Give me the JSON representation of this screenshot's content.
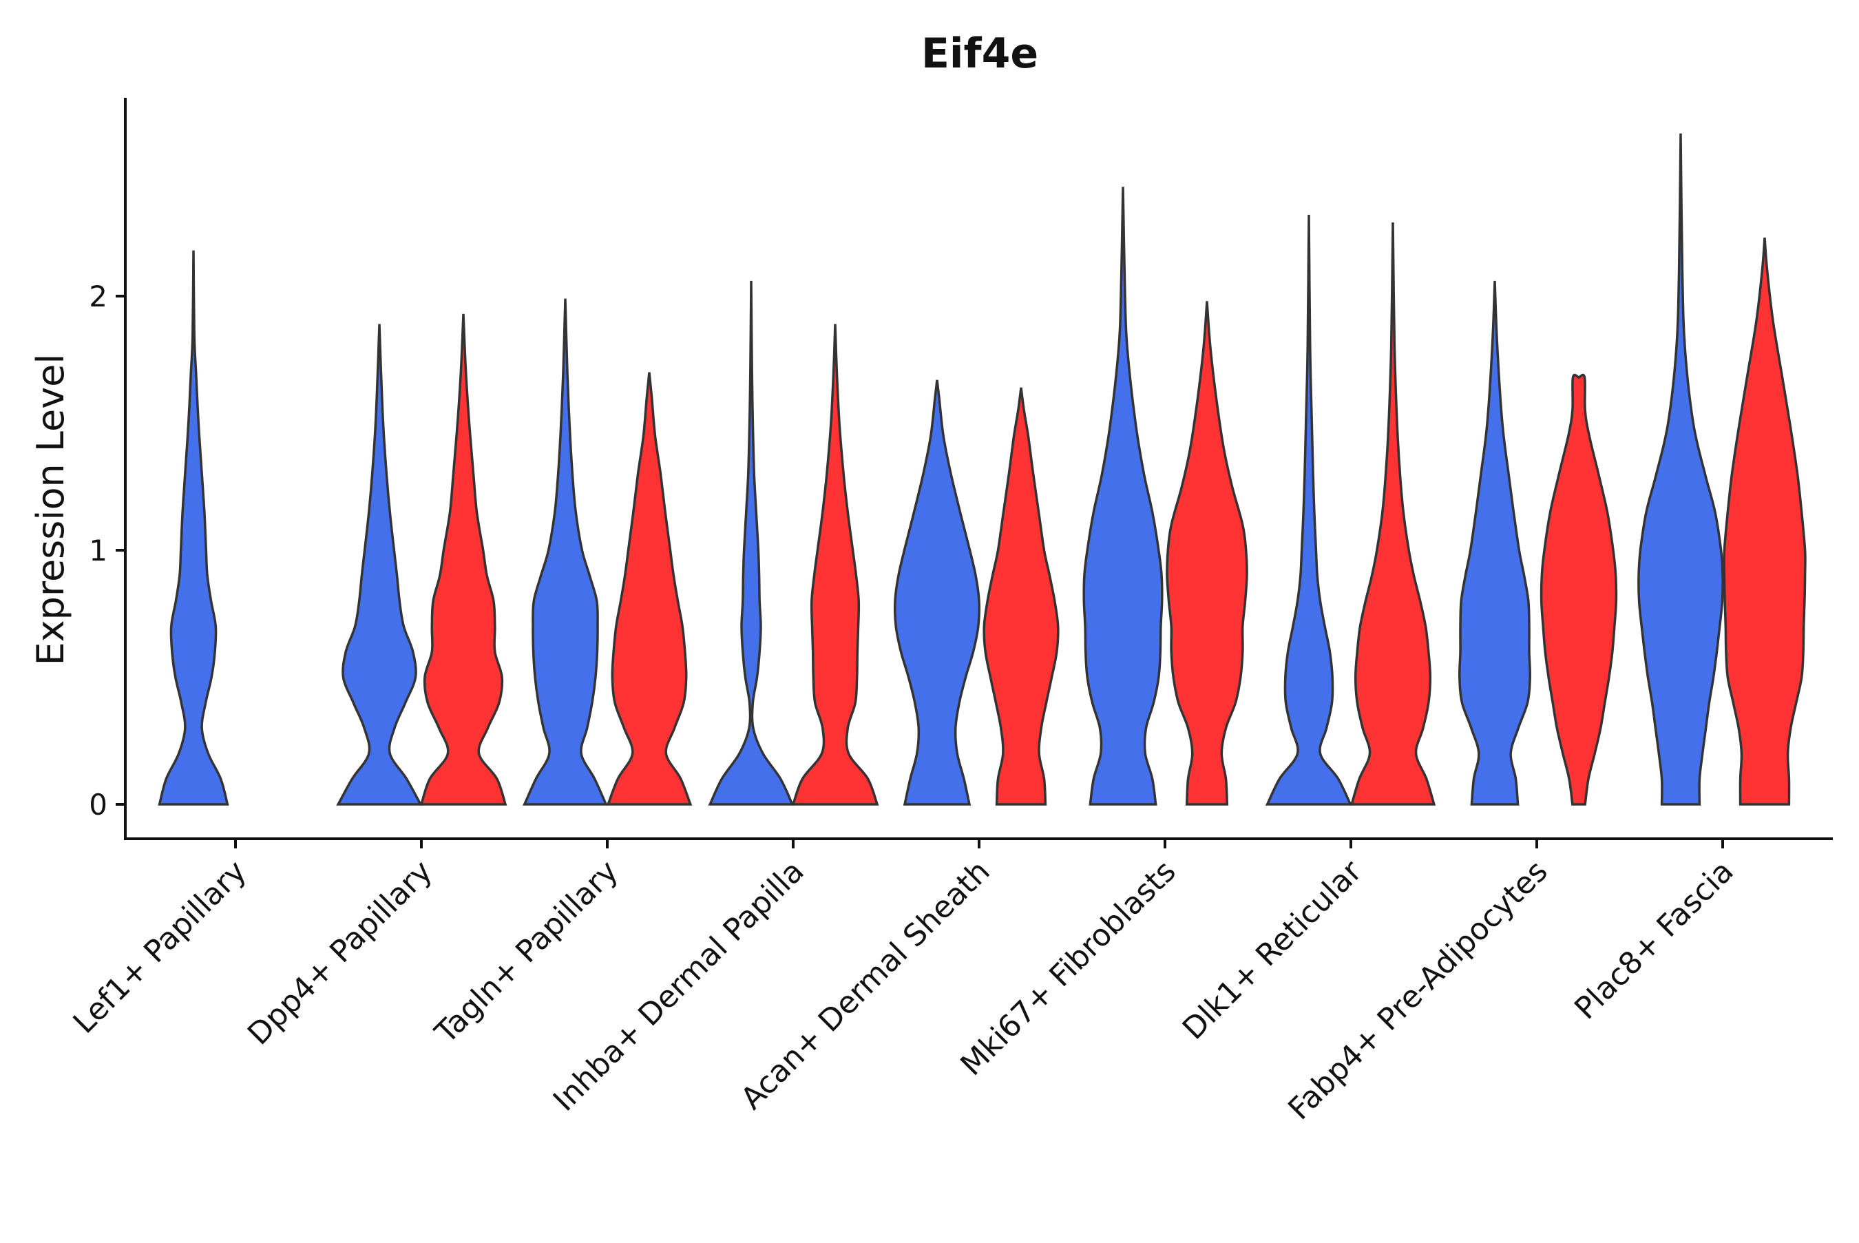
{
  "chart_data": {
    "type": "violin",
    "title": "Eif4e",
    "xlabel": "",
    "ylabel": "Expression Level",
    "ylim": [
      -0.13,
      2.8
    ],
    "yticks": [
      "0",
      "1",
      "2"
    ],
    "grid": false,
    "legend": "none",
    "series_colors": {
      "blue": "#4570EB",
      "red": "#FF3333"
    },
    "categories": [
      "Lef1+ Papillary",
      "Dpp4+ Papillary",
      "Tagln+ Papillary",
      "Inhba+ Dermal Papilla",
      "Acan+ Dermal Sheath",
      "Mki67+ Fibroblasts",
      "Dlk1+ Reticular",
      "Fabp4+ Pre-Adipocytes",
      "Plac8+ Fascia"
    ],
    "violins": [
      {
        "category": "Lef1+ Papillary",
        "group": "blue",
        "max": 2.18,
        "profile": [
          [
            0,
            0.81
          ],
          [
            0.1,
            0.65
          ],
          [
            0.2,
            0.35
          ],
          [
            0.3,
            0.2
          ],
          [
            0.4,
            0.29
          ],
          [
            0.5,
            0.43
          ],
          [
            0.6,
            0.51
          ],
          [
            0.7,
            0.53
          ],
          [
            0.8,
            0.42
          ],
          [
            0.9,
            0.33
          ],
          [
            1.0,
            0.3
          ],
          [
            1.15,
            0.26
          ],
          [
            1.3,
            0.2
          ],
          [
            1.5,
            0.12
          ],
          [
            1.7,
            0.06
          ],
          [
            1.85,
            0.02
          ],
          [
            2.18,
            0.0
          ]
        ]
      },
      {
        "category": "Dpp4+ Papillary",
        "group": "blue",
        "max": 1.89,
        "profile": [
          [
            0,
            0.98
          ],
          [
            0.1,
            0.65
          ],
          [
            0.2,
            0.25
          ],
          [
            0.3,
            0.36
          ],
          [
            0.4,
            0.62
          ],
          [
            0.5,
            0.86
          ],
          [
            0.6,
            0.8
          ],
          [
            0.7,
            0.58
          ],
          [
            0.8,
            0.48
          ],
          [
            0.9,
            0.42
          ],
          [
            1.0,
            0.35
          ],
          [
            1.15,
            0.25
          ],
          [
            1.3,
            0.17
          ],
          [
            1.5,
            0.09
          ],
          [
            1.7,
            0.04
          ],
          [
            1.89,
            0.0
          ]
        ]
      },
      {
        "category": "Dpp4+ Papillary",
        "group": "red",
        "max": 1.93,
        "profile": [
          [
            0,
            1.0
          ],
          [
            0.1,
            0.8
          ],
          [
            0.2,
            0.37
          ],
          [
            0.3,
            0.58
          ],
          [
            0.4,
            0.85
          ],
          [
            0.5,
            0.92
          ],
          [
            0.6,
            0.75
          ],
          [
            0.7,
            0.75
          ],
          [
            0.8,
            0.72
          ],
          [
            0.9,
            0.56
          ],
          [
            1.0,
            0.47
          ],
          [
            1.15,
            0.32
          ],
          [
            1.3,
            0.24
          ],
          [
            1.5,
            0.14
          ],
          [
            1.7,
            0.06
          ],
          [
            1.93,
            0.0
          ]
        ]
      },
      {
        "category": "Tagln+ Papillary",
        "group": "blue",
        "max": 1.99,
        "profile": [
          [
            0,
            0.97
          ],
          [
            0.1,
            0.7
          ],
          [
            0.2,
            0.38
          ],
          [
            0.3,
            0.52
          ],
          [
            0.4,
            0.64
          ],
          [
            0.5,
            0.72
          ],
          [
            0.6,
            0.76
          ],
          [
            0.7,
            0.77
          ],
          [
            0.8,
            0.75
          ],
          [
            0.9,
            0.58
          ],
          [
            1.0,
            0.4
          ],
          [
            1.15,
            0.25
          ],
          [
            1.3,
            0.17
          ],
          [
            1.5,
            0.1
          ],
          [
            1.7,
            0.05
          ],
          [
            1.99,
            0.0
          ]
        ]
      },
      {
        "category": "Tagln+ Papillary",
        "group": "red",
        "max": 1.7,
        "profile": [
          [
            0,
            0.98
          ],
          [
            0.1,
            0.75
          ],
          [
            0.2,
            0.4
          ],
          [
            0.3,
            0.6
          ],
          [
            0.4,
            0.82
          ],
          [
            0.5,
            0.88
          ],
          [
            0.6,
            0.85
          ],
          [
            0.7,
            0.79
          ],
          [
            0.8,
            0.68
          ],
          [
            0.9,
            0.58
          ],
          [
            1.0,
            0.5
          ],
          [
            1.15,
            0.38
          ],
          [
            1.3,
            0.27
          ],
          [
            1.45,
            0.14
          ],
          [
            1.6,
            0.06
          ],
          [
            1.7,
            0.0
          ]
        ]
      },
      {
        "category": "Inhba+ Dermal Papilla",
        "group": "blue",
        "max": 2.06,
        "profile": [
          [
            0,
            0.98
          ],
          [
            0.1,
            0.7
          ],
          [
            0.2,
            0.28
          ],
          [
            0.3,
            0.05
          ],
          [
            0.4,
            0.04
          ],
          [
            0.5,
            0.14
          ],
          [
            0.6,
            0.2
          ],
          [
            0.7,
            0.23
          ],
          [
            0.8,
            0.2
          ],
          [
            0.9,
            0.19
          ],
          [
            1.0,
            0.17
          ],
          [
            1.15,
            0.12
          ],
          [
            1.3,
            0.07
          ],
          [
            1.5,
            0.04
          ],
          [
            1.7,
            0.02
          ],
          [
            2.06,
            0.0
          ]
        ]
      },
      {
        "category": "Inhba+ Dermal Papilla",
        "group": "red",
        "max": 1.89,
        "profile": [
          [
            0,
            1.0
          ],
          [
            0.1,
            0.78
          ],
          [
            0.2,
            0.32
          ],
          [
            0.3,
            0.3
          ],
          [
            0.4,
            0.48
          ],
          [
            0.5,
            0.52
          ],
          [
            0.6,
            0.53
          ],
          [
            0.7,
            0.55
          ],
          [
            0.8,
            0.56
          ],
          [
            0.9,
            0.5
          ],
          [
            1.0,
            0.42
          ],
          [
            1.15,
            0.3
          ],
          [
            1.3,
            0.2
          ],
          [
            1.5,
            0.1
          ],
          [
            1.7,
            0.04
          ],
          [
            1.89,
            0.0
          ]
        ]
      },
      {
        "category": "Acan+ Dermal Sheath",
        "group": "blue",
        "max": 1.67,
        "profile": [
          [
            0,
            0.77
          ],
          [
            0.1,
            0.64
          ],
          [
            0.2,
            0.48
          ],
          [
            0.3,
            0.44
          ],
          [
            0.4,
            0.53
          ],
          [
            0.5,
            0.68
          ],
          [
            0.6,
            0.86
          ],
          [
            0.7,
            0.98
          ],
          [
            0.8,
            1.0
          ],
          [
            0.9,
            0.92
          ],
          [
            1.0,
            0.78
          ],
          [
            1.15,
            0.55
          ],
          [
            1.3,
            0.33
          ],
          [
            1.45,
            0.15
          ],
          [
            1.6,
            0.05
          ],
          [
            1.67,
            0.0
          ]
        ]
      },
      {
        "category": "Acan+ Dermal Sheath",
        "group": "red",
        "max": 1.64,
        "profile": [
          [
            0,
            0.58
          ],
          [
            0.1,
            0.55
          ],
          [
            0.2,
            0.43
          ],
          [
            0.3,
            0.48
          ],
          [
            0.4,
            0.6
          ],
          [
            0.5,
            0.73
          ],
          [
            0.6,
            0.85
          ],
          [
            0.7,
            0.88
          ],
          [
            0.8,
            0.8
          ],
          [
            0.9,
            0.68
          ],
          [
            1.0,
            0.55
          ],
          [
            1.15,
            0.42
          ],
          [
            1.3,
            0.29
          ],
          [
            1.45,
            0.17
          ],
          [
            1.55,
            0.07
          ],
          [
            1.64,
            0.0
          ]
        ]
      },
      {
        "category": "Mki67+ Fibroblasts",
        "group": "blue",
        "max": 2.43,
        "profile": [
          [
            0,
            0.78
          ],
          [
            0.1,
            0.7
          ],
          [
            0.2,
            0.53
          ],
          [
            0.3,
            0.55
          ],
          [
            0.4,
            0.73
          ],
          [
            0.5,
            0.85
          ],
          [
            0.6,
            0.89
          ],
          [
            0.7,
            0.9
          ],
          [
            0.8,
            0.93
          ],
          [
            0.9,
            0.92
          ],
          [
            1.0,
            0.85
          ],
          [
            1.15,
            0.7
          ],
          [
            1.3,
            0.5
          ],
          [
            1.5,
            0.3
          ],
          [
            1.8,
            0.1
          ],
          [
            2.0,
            0.05
          ],
          [
            2.43,
            0.0
          ]
        ]
      },
      {
        "category": "Mki67+ Fibroblasts",
        "group": "red",
        "max": 1.98,
        "profile": [
          [
            0,
            0.48
          ],
          [
            0.1,
            0.45
          ],
          [
            0.2,
            0.35
          ],
          [
            0.3,
            0.45
          ],
          [
            0.4,
            0.68
          ],
          [
            0.5,
            0.8
          ],
          [
            0.6,
            0.85
          ],
          [
            0.7,
            0.85
          ],
          [
            0.8,
            0.91
          ],
          [
            0.9,
            0.95
          ],
          [
            1.0,
            0.93
          ],
          [
            1.1,
            0.85
          ],
          [
            1.25,
            0.6
          ],
          [
            1.4,
            0.4
          ],
          [
            1.6,
            0.22
          ],
          [
            1.8,
            0.08
          ],
          [
            1.98,
            0.0
          ]
        ]
      },
      {
        "category": "Dlk1+ Reticular",
        "group": "blue",
        "max": 2.32,
        "profile": [
          [
            0,
            0.99
          ],
          [
            0.1,
            0.7
          ],
          [
            0.2,
            0.27
          ],
          [
            0.3,
            0.42
          ],
          [
            0.4,
            0.55
          ],
          [
            0.5,
            0.56
          ],
          [
            0.6,
            0.5
          ],
          [
            0.7,
            0.38
          ],
          [
            0.8,
            0.27
          ],
          [
            0.9,
            0.2
          ],
          [
            1.0,
            0.17
          ],
          [
            1.15,
            0.13
          ],
          [
            1.3,
            0.1
          ],
          [
            1.5,
            0.07
          ],
          [
            1.8,
            0.03
          ],
          [
            2.32,
            0.0
          ]
        ]
      },
      {
        "category": "Dlk1+ Reticular",
        "group": "red",
        "max": 2.29,
        "profile": [
          [
            0,
            0.98
          ],
          [
            0.1,
            0.8
          ],
          [
            0.2,
            0.55
          ],
          [
            0.3,
            0.72
          ],
          [
            0.4,
            0.85
          ],
          [
            0.5,
            0.89
          ],
          [
            0.6,
            0.85
          ],
          [
            0.7,
            0.78
          ],
          [
            0.8,
            0.65
          ],
          [
            0.9,
            0.5
          ],
          [
            1.0,
            0.38
          ],
          [
            1.15,
            0.25
          ],
          [
            1.3,
            0.17
          ],
          [
            1.5,
            0.1
          ],
          [
            1.8,
            0.04
          ],
          [
            2.29,
            0.0
          ]
        ]
      },
      {
        "category": "Fabp4+ Pre-Adipocytes",
        "group": "blue",
        "max": 2.06,
        "profile": [
          [
            0,
            0.55
          ],
          [
            0.1,
            0.5
          ],
          [
            0.2,
            0.38
          ],
          [
            0.3,
            0.56
          ],
          [
            0.4,
            0.78
          ],
          [
            0.5,
            0.84
          ],
          [
            0.6,
            0.82
          ],
          [
            0.7,
            0.82
          ],
          [
            0.8,
            0.8
          ],
          [
            0.9,
            0.7
          ],
          [
            1.0,
            0.58
          ],
          [
            1.15,
            0.45
          ],
          [
            1.3,
            0.33
          ],
          [
            1.5,
            0.18
          ],
          [
            1.8,
            0.06
          ],
          [
            2.06,
            0.0
          ]
        ]
      },
      {
        "category": "Fabp4+ Pre-Adipocytes",
        "group": "red",
        "max": 1.68,
        "profile": [
          [
            0,
            0.15
          ],
          [
            0.1,
            0.23
          ],
          [
            0.2,
            0.38
          ],
          [
            0.3,
            0.52
          ],
          [
            0.4,
            0.62
          ],
          [
            0.5,
            0.72
          ],
          [
            0.6,
            0.8
          ],
          [
            0.7,
            0.85
          ],
          [
            0.8,
            0.89
          ],
          [
            0.9,
            0.88
          ],
          [
            1.0,
            0.82
          ],
          [
            1.15,
            0.68
          ],
          [
            1.3,
            0.47
          ],
          [
            1.45,
            0.25
          ],
          [
            1.55,
            0.15
          ],
          [
            1.68,
            0.14
          ],
          [
            1.68,
            0.0
          ]
        ]
      },
      {
        "category": "Plac8+ Fascia",
        "group": "blue",
        "max": 2.64,
        "profile": [
          [
            0,
            0.45
          ],
          [
            0.1,
            0.45
          ],
          [
            0.2,
            0.52
          ],
          [
            0.3,
            0.6
          ],
          [
            0.4,
            0.68
          ],
          [
            0.5,
            0.78
          ],
          [
            0.6,
            0.86
          ],
          [
            0.7,
            0.93
          ],
          [
            0.8,
            0.99
          ],
          [
            0.9,
            1.0
          ],
          [
            1.0,
            0.96
          ],
          [
            1.15,
            0.82
          ],
          [
            1.3,
            0.58
          ],
          [
            1.5,
            0.3
          ],
          [
            1.8,
            0.1
          ],
          [
            2.1,
            0.04
          ],
          [
            2.64,
            0.0
          ]
        ]
      },
      {
        "category": "Plac8+ Fascia",
        "group": "red",
        "max": 2.23,
        "profile": [
          [
            0,
            0.58
          ],
          [
            0.1,
            0.58
          ],
          [
            0.2,
            0.55
          ],
          [
            0.3,
            0.62
          ],
          [
            0.4,
            0.75
          ],
          [
            0.5,
            0.88
          ],
          [
            0.6,
            0.92
          ],
          [
            0.7,
            0.93
          ],
          [
            0.8,
            0.95
          ],
          [
            0.9,
            0.96
          ],
          [
            1.0,
            0.96
          ],
          [
            1.15,
            0.88
          ],
          [
            1.3,
            0.78
          ],
          [
            1.5,
            0.6
          ],
          [
            1.7,
            0.4
          ],
          [
            1.9,
            0.2
          ],
          [
            2.1,
            0.06
          ],
          [
            2.23,
            0.0
          ]
        ]
      }
    ]
  }
}
